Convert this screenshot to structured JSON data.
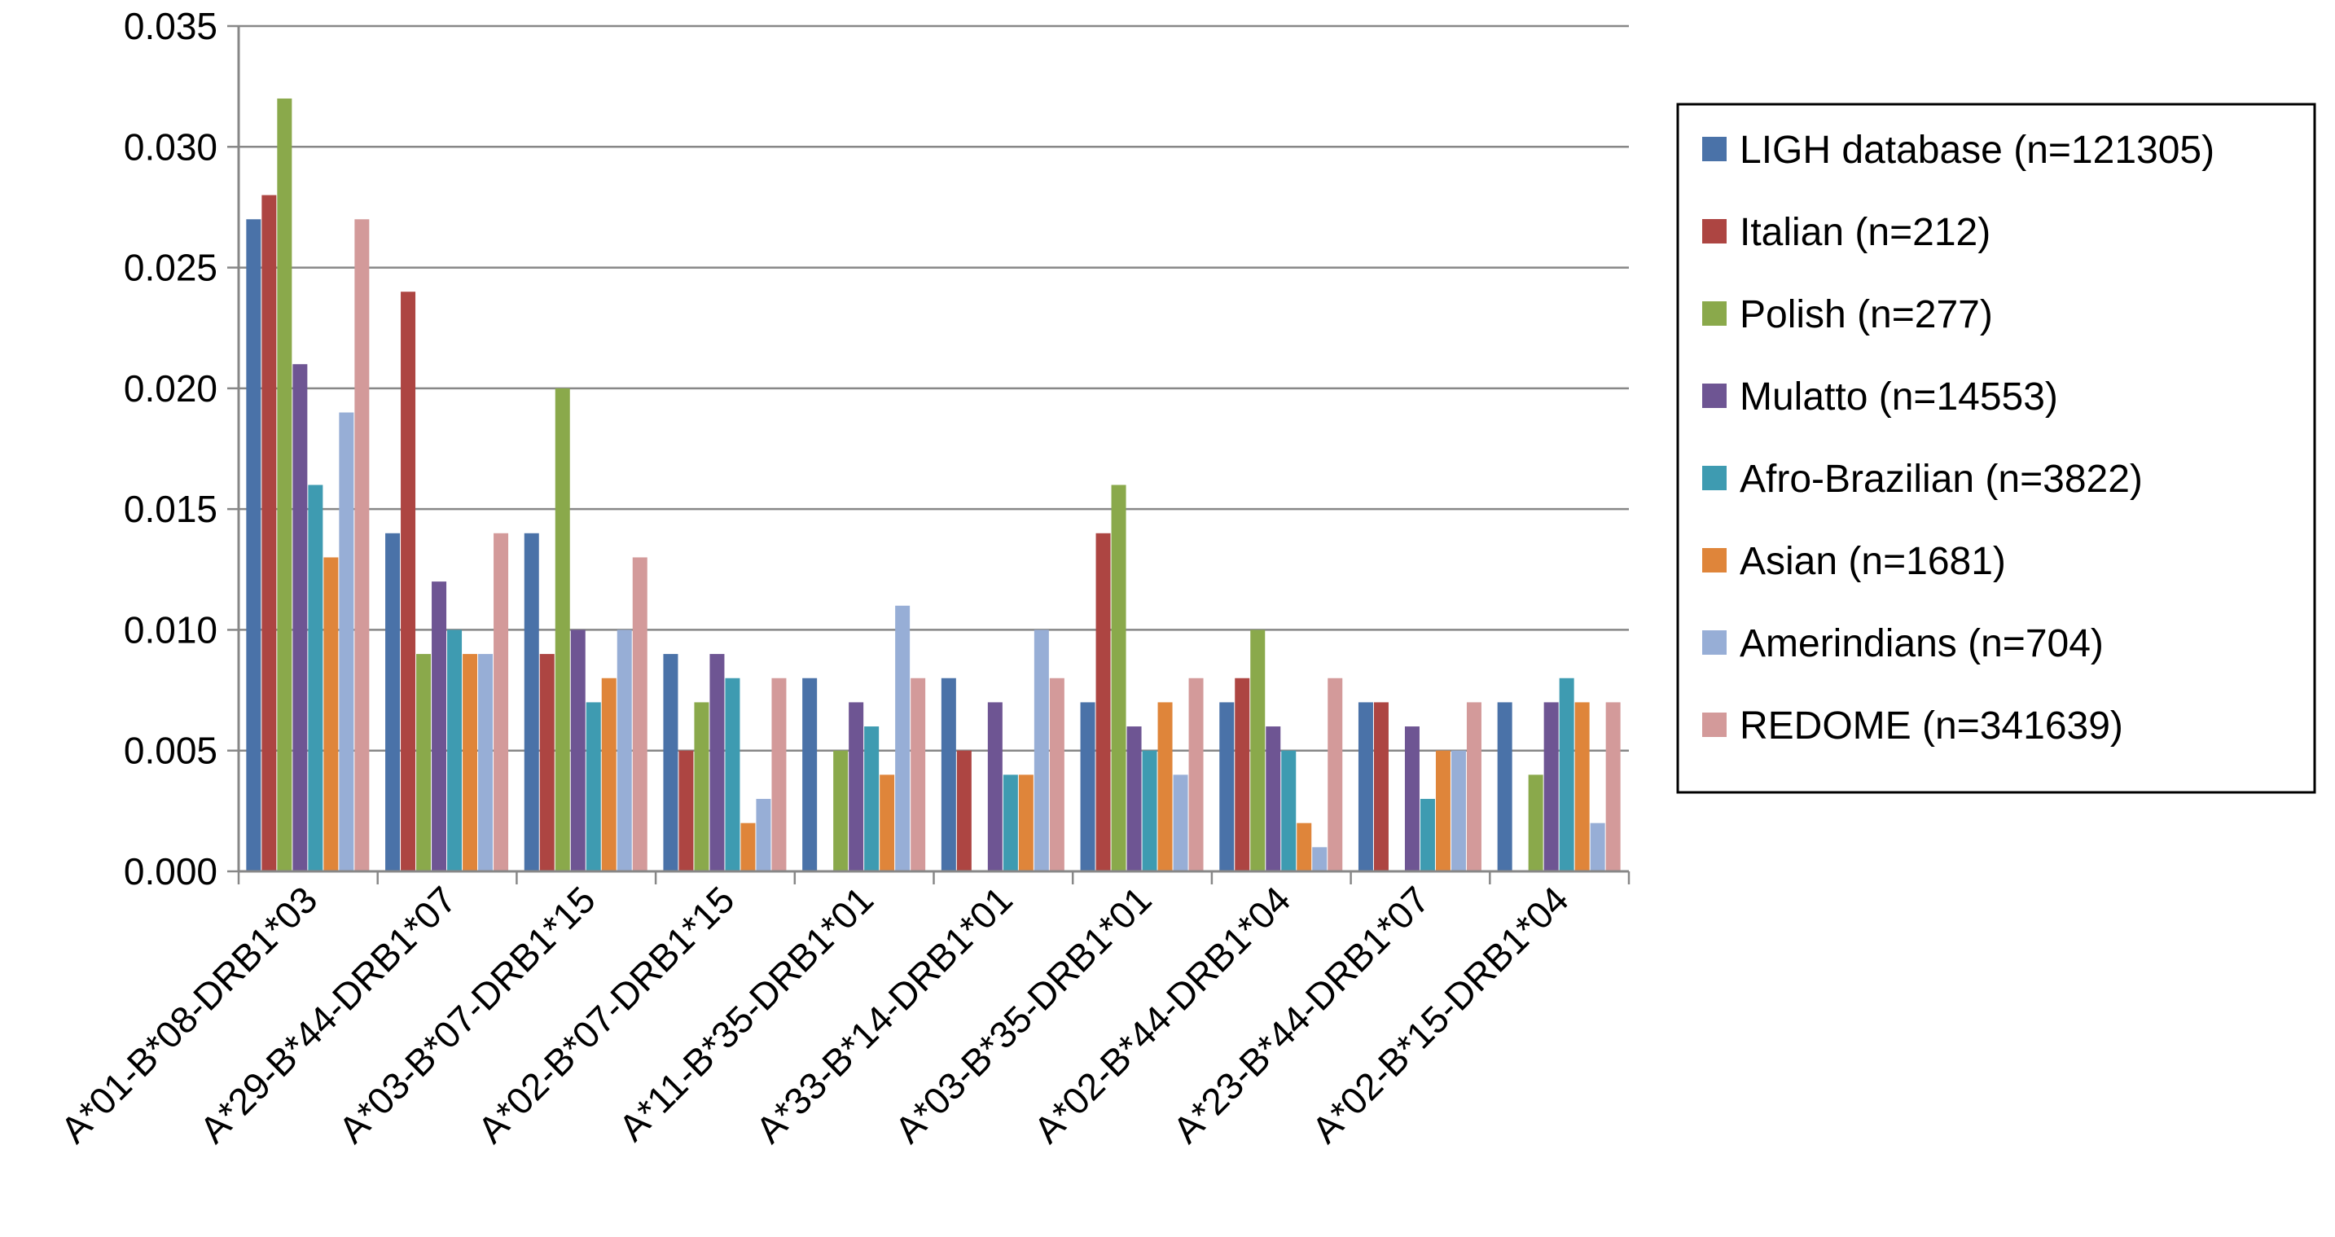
{
  "chart_data": {
    "type": "bar",
    "title": "",
    "xlabel": "",
    "ylabel": "",
    "ylim": [
      0,
      0.035
    ],
    "yticks": [
      "0.000",
      "0.005",
      "0.010",
      "0.015",
      "0.020",
      "0.025",
      "0.030",
      "0.035"
    ],
    "grid": "horizontal",
    "legend_position": "right",
    "categories": [
      "A*01-B*08-DRB1*03",
      "A*29-B*44-DRB1*07",
      "A*03-B*07-DRB1*15",
      "A*02-B*07-DRB1*15",
      "A*11-B*35-DRB1*01",
      "A*33-B*14-DRB1*01",
      "A*03-B*35-DRB1*01",
      "A*02-B*44-DRB1*04",
      "A*23-B*44-DRB1*07",
      "A*02-B*15-DRB1*04"
    ],
    "series": [
      {
        "name": "LIGH database (n=121305)",
        "color": "#4a72a8",
        "values": [
          0.027,
          0.014,
          0.014,
          0.009,
          0.008,
          0.008,
          0.007,
          0.007,
          0.007,
          0.007
        ]
      },
      {
        "name": "Italian (n=212)",
        "color": "#ad4542",
        "values": [
          0.028,
          0.024,
          0.009,
          0.005,
          0.0,
          0.005,
          0.014,
          0.008,
          0.007,
          0.0
        ]
      },
      {
        "name": "Polish (n=277)",
        "color": "#8aa94b",
        "values": [
          0.032,
          0.009,
          0.02,
          0.007,
          0.005,
          0.0,
          0.016,
          0.01,
          0.0,
          0.004
        ]
      },
      {
        "name": "Mulatto (n=14553)",
        "color": "#6e5593",
        "values": [
          0.021,
          0.012,
          0.01,
          0.009,
          0.007,
          0.007,
          0.006,
          0.006,
          0.006,
          0.007
        ]
      },
      {
        "name": "Afro-Brazilian (n=3822)",
        "color": "#3e9bb1",
        "values": [
          0.016,
          0.01,
          0.007,
          0.008,
          0.006,
          0.004,
          0.005,
          0.005,
          0.003,
          0.008
        ]
      },
      {
        "name": "Asian (n=1681)",
        "color": "#df853a",
        "values": [
          0.013,
          0.009,
          0.008,
          0.002,
          0.004,
          0.004,
          0.007,
          0.002,
          0.005,
          0.007
        ]
      },
      {
        "name": "Amerindians (n=704)",
        "color": "#97aed6",
        "values": [
          0.019,
          0.009,
          0.01,
          0.003,
          0.011,
          0.01,
          0.004,
          0.001,
          0.005,
          0.002
        ]
      },
      {
        "name": "REDOME (n=341639)",
        "color": "#d39a9a",
        "values": [
          0.027,
          0.014,
          0.013,
          0.008,
          0.008,
          0.008,
          0.008,
          0.008,
          0.007,
          0.007
        ]
      }
    ]
  }
}
